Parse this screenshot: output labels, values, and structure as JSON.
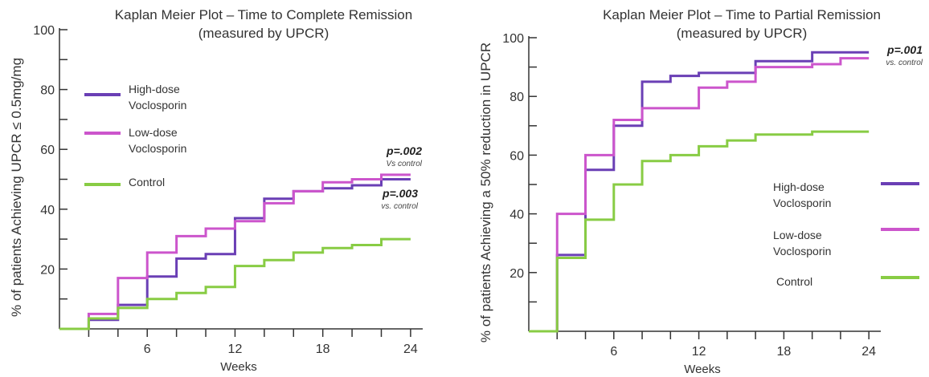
{
  "chart_data": [
    {
      "type": "line",
      "title": "Kaplan Meier Plot – Time to Complete Remission",
      "subtitle": "(measured by UPCR)",
      "xlabel": "Weeks",
      "ylabel": "% of patients Achieving UPCR ≤ 0.5mg/mg",
      "xlim": [
        0,
        24.5
      ],
      "ylim": [
        0,
        100
      ],
      "xticks": [
        6,
        12,
        18,
        24
      ],
      "yticks": [
        20,
        40,
        60,
        80,
        100
      ],
      "legend": "left",
      "annotations": [
        {
          "text": "p=.002",
          "sub": "Vs control"
        },
        {
          "text": "p=.003",
          "sub": "vs. control"
        }
      ],
      "series": [
        {
          "name": "High-dose Voclosporin",
          "color": "#6a3fb5",
          "step": true,
          "x": [
            0,
            2,
            4,
            6,
            8,
            10,
            12,
            14,
            16,
            18,
            20,
            22,
            24
          ],
          "y": [
            0,
            3,
            8,
            17.5,
            23.5,
            25,
            37,
            43.5,
            46,
            47,
            48,
            50,
            50
          ]
        },
        {
          "name": "Low-dose Voclosporin",
          "color": "#cc55cc",
          "step": true,
          "x": [
            0,
            2,
            4,
            6,
            8,
            10,
            12,
            14,
            16,
            18,
            20,
            22,
            24
          ],
          "y": [
            0,
            5,
            17,
            25.5,
            31,
            33.5,
            36,
            42,
            46,
            49,
            50,
            51.5,
            51.5
          ]
        },
        {
          "name": "Control",
          "color": "#88cc44",
          "step": true,
          "x": [
            0,
            2,
            4,
            6,
            8,
            10,
            12,
            14,
            16,
            18,
            20,
            22,
            24
          ],
          "y": [
            0,
            3.5,
            7,
            10,
            12,
            14,
            21,
            23,
            25.5,
            27,
            28,
            30,
            30
          ]
        }
      ]
    },
    {
      "type": "line",
      "title": "Kaplan Meier Plot – Time to Partial Remission",
      "subtitle": "(measured by UPCR)",
      "xlabel": "Weeks",
      "ylabel": "% of patients Achieving a 50% reduction in UPCR",
      "xlim": [
        0,
        24.5
      ],
      "ylim": [
        0,
        100
      ],
      "xticks": [
        6,
        12,
        18,
        24
      ],
      "yticks": [
        20,
        40,
        60,
        80,
        100
      ],
      "legend": "bottom-right",
      "annotations": [
        {
          "text": "p=.001",
          "sub": "vs. control"
        }
      ],
      "series": [
        {
          "name": "High-dose Voclosporin",
          "color": "#6a3fb5",
          "step": true,
          "x": [
            0,
            2,
            4,
            6,
            8,
            10,
            12,
            16,
            20,
            24
          ],
          "y": [
            0,
            26,
            55,
            70,
            85,
            87,
            88,
            92,
            95,
            95
          ]
        },
        {
          "name": "Low-dose Voclosporin",
          "color": "#cc55cc",
          "step": true,
          "x": [
            0,
            2,
            4,
            6,
            8,
            12,
            14,
            16,
            20,
            22,
            24
          ],
          "y": [
            0,
            40,
            60,
            72,
            76,
            83,
            85,
            90,
            91,
            93,
            93
          ]
        },
        {
          "name": "Control",
          "color": "#88cc44",
          "step": true,
          "x": [
            0,
            2,
            4,
            6,
            8,
            10,
            12,
            14,
            16,
            20,
            24
          ],
          "y": [
            0,
            25,
            38,
            50,
            58,
            60,
            63,
            65,
            67,
            68,
            68
          ]
        }
      ]
    }
  ]
}
